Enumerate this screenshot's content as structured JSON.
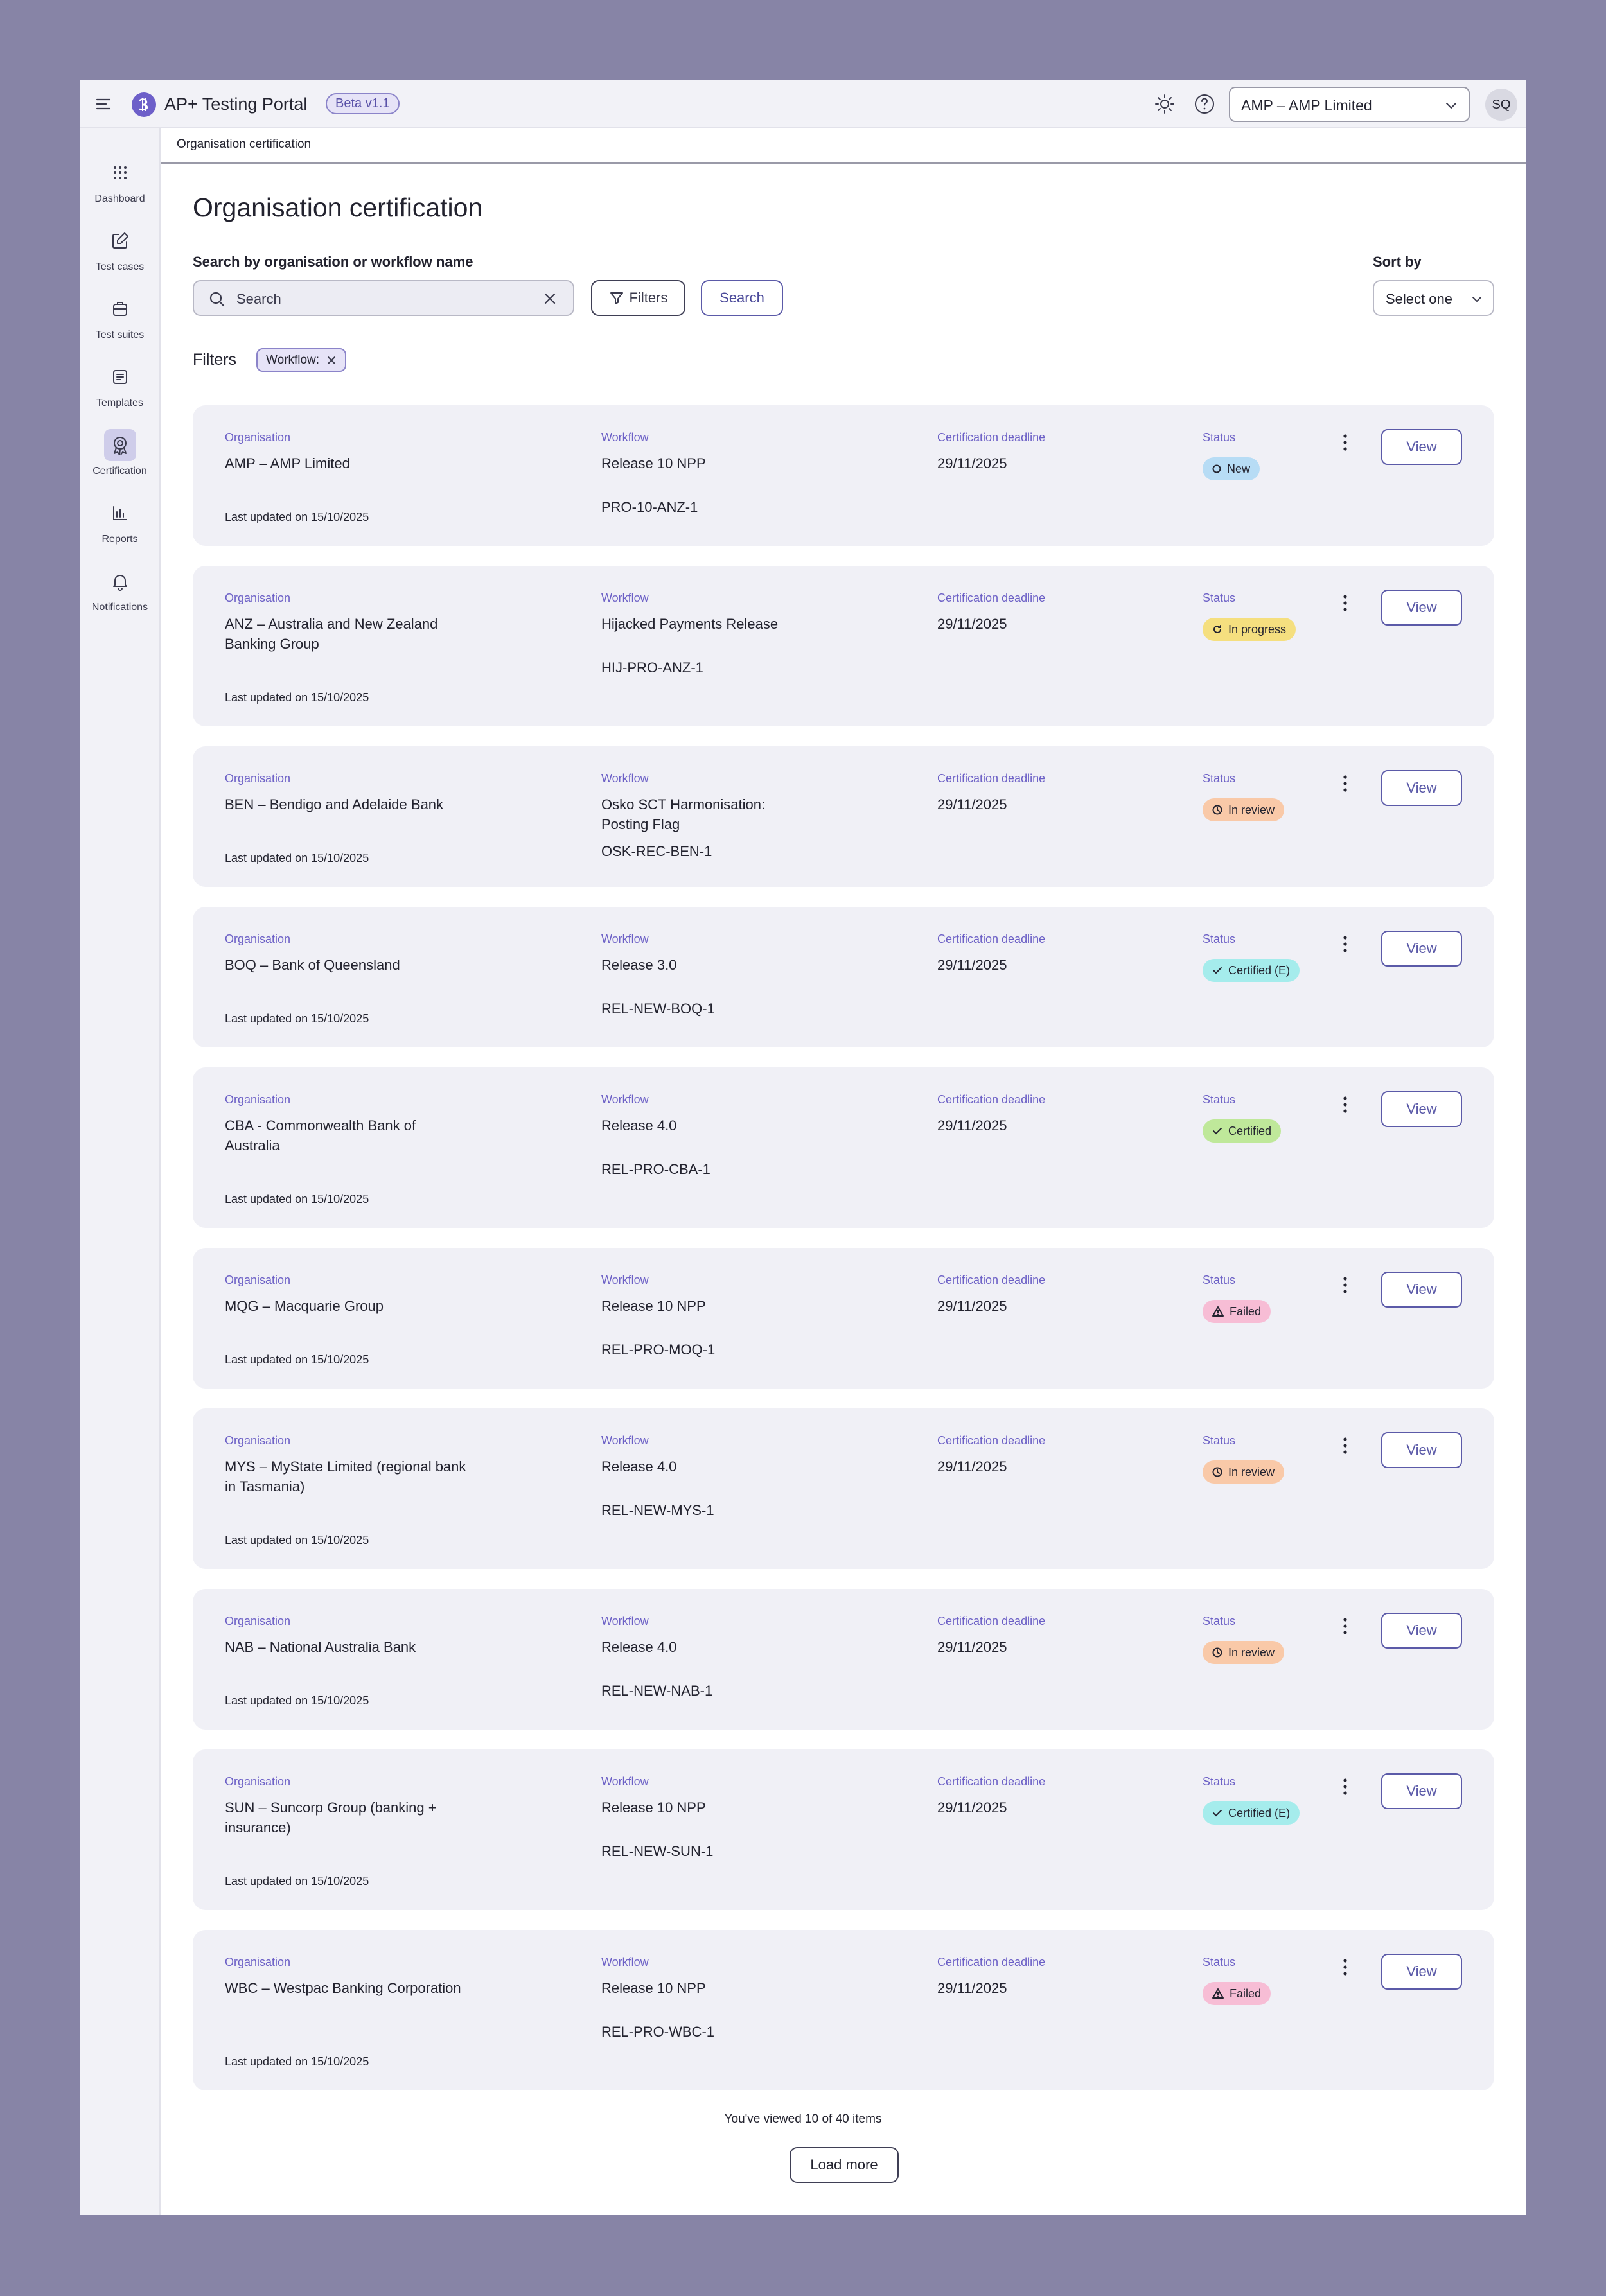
{
  "app": {
    "title": "AP+ Testing Portal",
    "badge": "Beta v1.1",
    "org_select": "AMP – AMP Limited",
    "avatar": "SQ"
  },
  "sidebar": {
    "items": [
      {
        "label": "Dashboard",
        "icon": "grid-icon"
      },
      {
        "label": "Test cases",
        "icon": "edit-icon"
      },
      {
        "label": "Test suites",
        "icon": "suitcase-icon"
      },
      {
        "label": "Templates",
        "icon": "template-icon"
      },
      {
        "label": "Certification",
        "icon": "award-icon"
      },
      {
        "label": "Reports",
        "icon": "bar-chart-icon"
      },
      {
        "label": "Notifications",
        "icon": "bell-icon"
      }
    ]
  },
  "breadcrumb": "Organisation certification",
  "page": {
    "title": "Organisation certification",
    "search_label": "Search by organisation or workflow name",
    "search_placeholder": "Search",
    "filters_button": "Filters",
    "search_button": "Search",
    "sort_label": "Sort by",
    "sort_value": "Select one",
    "filters_label": "Filters",
    "filter_chip": "Workflow:"
  },
  "labels": {
    "organisation": "Organisation",
    "workflow": "Workflow",
    "deadline": "Certification deadline",
    "status": "Status",
    "view": "View"
  },
  "rows": [
    {
      "org": "AMP – AMP Limited",
      "updated": "Last updated on 15/10/2025",
      "workflow": "Release 10 NPP",
      "code": "PRO-10-ANZ-1",
      "deadline": "29/11/2025",
      "status": "New",
      "status_kind": "new"
    },
    {
      "org": "ANZ – Australia and New Zealand Banking Group",
      "updated": "Last updated on 15/10/2025",
      "workflow": "Hijacked Payments Release",
      "code": "HIJ-PRO-ANZ-1",
      "deadline": "29/11/2025",
      "status": "In progress",
      "status_kind": "progress"
    },
    {
      "org": "BEN – Bendigo and Adelaide Bank",
      "updated": "Last updated on 15/10/2025",
      "workflow": "Osko SCT Harmonisation: Posting Flag",
      "code": "OSK-REC-BEN-1",
      "deadline": "29/11/2025",
      "status": "In review",
      "status_kind": "review"
    },
    {
      "org": "BOQ – Bank of Queensland",
      "updated": "Last updated on 15/10/2025",
      "workflow": "Release 3.0",
      "code": "REL-NEW-BOQ-1",
      "deadline": "29/11/2025",
      "status": "Certified (E)",
      "status_kind": "certE"
    },
    {
      "org": "CBA - Commonwealth Bank of Australia",
      "updated": "Last updated on 15/10/2025",
      "workflow": "Release 4.0",
      "code": "REL-PRO-CBA-1",
      "deadline": "29/11/2025",
      "status": "Certified",
      "status_kind": "cert"
    },
    {
      "org": "MQG – Macquarie Group",
      "updated": "Last updated on 15/10/2025",
      "workflow": "Release 10 NPP",
      "code": "REL-PRO-MOQ-1",
      "deadline": "29/11/2025",
      "status": "Failed",
      "status_kind": "failed"
    },
    {
      "org": "MYS – MyState Limited (regional bank in Tasmania)",
      "updated": "Last updated on 15/10/2025",
      "workflow": "Release 4.0",
      "code": "REL-NEW-MYS-1",
      "deadline": "29/11/2025",
      "status": "In review",
      "status_kind": "review"
    },
    {
      "org": "NAB – National Australia Bank",
      "updated": "Last updated on 15/10/2025",
      "workflow": "Release 4.0",
      "code": "REL-NEW-NAB-1",
      "deadline": "29/11/2025",
      "status": "In review",
      "status_kind": "review"
    },
    {
      "org": "SUN – Suncorp Group (banking + insurance)",
      "updated": "Last updated on 15/10/2025",
      "workflow": "Release 10 NPP",
      "code": "REL-NEW-SUN-1",
      "deadline": "29/11/2025",
      "status": "Certified (E)",
      "status_kind": "certE"
    },
    {
      "org": "WBC – Westpac Banking Corporation",
      "updated": "Last updated on 15/10/2025",
      "workflow": "Release 10 NPP",
      "code": "REL-PRO-WBC-1",
      "deadline": "29/11/2025",
      "status": "Failed",
      "status_kind": "failed"
    }
  ],
  "footer": {
    "viewed": "You've viewed 10 of 40 items",
    "load_more": "Load more"
  }
}
